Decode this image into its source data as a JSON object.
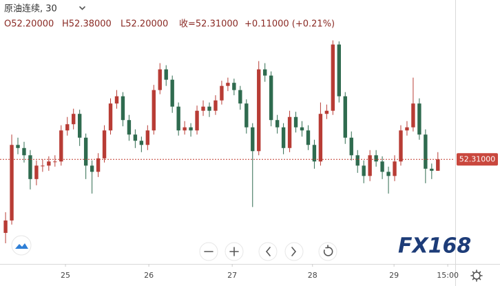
{
  "chart_data": {
    "type": "candlestick",
    "title": "原油连续, 30",
    "ohlc_labels": [
      "O52.20000",
      "H52.38000",
      "L52.20000",
      "收=52.31000",
      "+0.11000 (+0.21%)"
    ],
    "watermark": "FX168",
    "up_color": "#b83c35",
    "down_color": "#2f6b4f",
    "x": [
      0,
      1,
      2,
      3,
      4,
      5,
      6,
      7,
      8,
      9,
      10,
      11,
      12,
      13,
      14,
      15,
      16,
      17,
      18,
      19,
      20,
      21,
      22,
      23,
      24,
      25,
      26,
      27,
      28,
      29,
      30,
      31,
      32,
      33,
      34,
      35,
      36,
      37,
      38,
      39,
      40,
      41,
      42,
      43,
      44,
      45,
      46,
      47,
      48,
      49,
      50,
      51,
      52,
      53,
      54,
      55,
      56,
      57,
      58,
      59,
      60,
      61,
      62,
      63,
      64,
      65,
      66,
      67,
      68,
      69,
      70
    ],
    "open": [
      51.6,
      51.72,
      52.45,
      52.42,
      52.35,
      52.12,
      52.25,
      52.25,
      52.29,
      52.29,
      52.59,
      52.65,
      52.75,
      52.52,
      52.25,
      52.19,
      52.32,
      52.59,
      52.85,
      52.92,
      52.69,
      52.55,
      52.49,
      52.45,
      52.59,
      52.98,
      53.18,
      53.08,
      52.82,
      52.59,
      52.62,
      52.59,
      52.78,
      52.82,
      52.78,
      52.88,
      53.02,
      53.05,
      52.98,
      52.85,
      52.62,
      52.39,
      53.18,
      53.12,
      52.69,
      52.62,
      52.42,
      52.72,
      52.62,
      52.59,
      52.45,
      52.29,
      52.75,
      52.78,
      53.42,
      52.92,
      52.52,
      52.35,
      52.25,
      52.15,
      52.35,
      52.29,
      52.19,
      52.15,
      52.29,
      52.59,
      52.62,
      52.85,
      52.55,
      52.22,
      52.2
    ],
    "high": [
      51.8,
      52.55,
      52.52,
      52.48,
      52.4,
      52.3,
      52.31,
      52.34,
      52.35,
      52.64,
      52.72,
      52.8,
      52.79,
      52.56,
      52.3,
      52.37,
      52.64,
      52.9,
      52.98,
      52.96,
      52.74,
      52.6,
      52.53,
      52.64,
      53.03,
      53.24,
      53.22,
      53.12,
      52.86,
      52.68,
      52.66,
      52.83,
      52.88,
      52.86,
      52.93,
      53.07,
      53.1,
      53.09,
      53.02,
      52.89,
      52.66,
      53.26,
      53.24,
      53.16,
      52.74,
      52.66,
      52.78,
      52.77,
      52.68,
      52.64,
      52.5,
      52.86,
      52.84,
      53.46,
      53.45,
      52.96,
      52.58,
      52.4,
      52.3,
      52.4,
      52.4,
      52.34,
      52.24,
      52.35,
      52.64,
      52.68,
      53.1,
      52.9,
      52.6,
      52.27,
      52.38
    ],
    "low": [
      51.5,
      51.68,
      52.36,
      52.28,
      52.02,
      52.06,
      52.19,
      52.2,
      52.24,
      52.25,
      52.54,
      52.6,
      52.44,
      52.12,
      51.98,
      52.14,
      52.28,
      52.55,
      52.8,
      52.63,
      52.49,
      52.42,
      52.38,
      52.4,
      52.55,
      52.94,
      53.02,
      52.76,
      52.54,
      52.55,
      52.53,
      52.55,
      52.73,
      52.72,
      52.74,
      52.84,
      52.97,
      52.93,
      52.79,
      52.56,
      51.85,
      52.35,
      53.06,
      52.63,
      52.56,
      52.36,
      52.38,
      52.57,
      52.53,
      52.4,
      52.22,
      52.25,
      52.7,
      52.74,
      52.86,
      52.46,
      52.3,
      52.18,
      52.08,
      52.1,
      52.24,
      52.12,
      51.98,
      52.1,
      52.25,
      52.54,
      52.58,
      52.5,
      52.08,
      52.12,
      52.2
    ],
    "close": [
      51.72,
      52.45,
      52.42,
      52.35,
      52.12,
      52.25,
      52.25,
      52.29,
      52.29,
      52.59,
      52.65,
      52.75,
      52.52,
      52.25,
      52.19,
      52.32,
      52.59,
      52.85,
      52.92,
      52.69,
      52.55,
      52.49,
      52.45,
      52.59,
      52.98,
      53.18,
      53.08,
      52.82,
      52.59,
      52.62,
      52.59,
      52.78,
      52.82,
      52.78,
      52.88,
      53.02,
      53.05,
      52.98,
      52.85,
      52.62,
      52.39,
      53.18,
      53.12,
      52.69,
      52.62,
      52.42,
      52.72,
      52.62,
      52.59,
      52.45,
      52.29,
      52.75,
      52.78,
      53.42,
      52.92,
      52.52,
      52.35,
      52.25,
      52.15,
      52.35,
      52.29,
      52.19,
      52.15,
      52.29,
      52.59,
      52.62,
      52.85,
      52.55,
      52.22,
      52.2,
      52.31
    ],
    "xlim": [
      -0.9,
      72.7
    ],
    "ylim": [
      51.3,
      53.85
    ],
    "xticks": [
      {
        "value": 9.7,
        "label": "25"
      },
      {
        "value": 23.2,
        "label": "26"
      },
      {
        "value": 36.7,
        "label": "27"
      },
      {
        "value": 49.7,
        "label": "28"
      },
      {
        "value": 62.9,
        "label": "29"
      },
      {
        "value": 71.6,
        "label": "15:00"
      }
    ],
    "last_price": {
      "value": 52.31,
      "label": "52.31000"
    }
  }
}
